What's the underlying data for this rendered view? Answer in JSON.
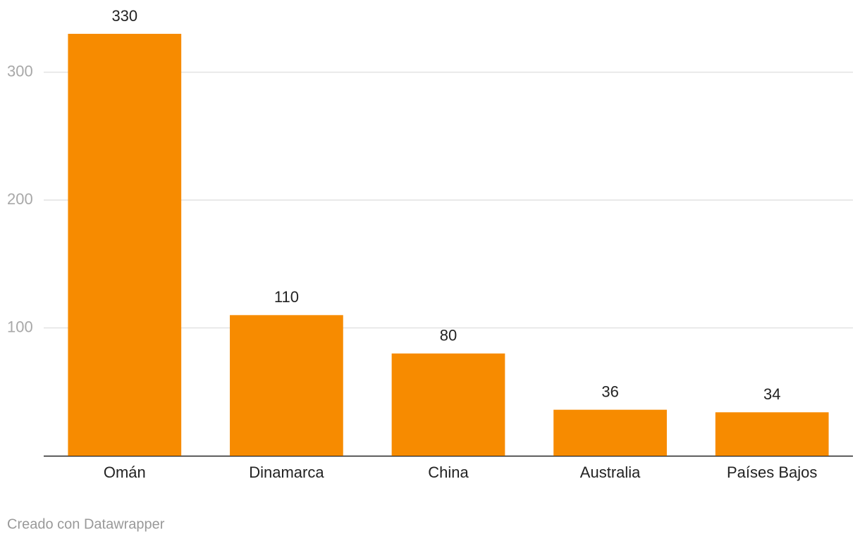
{
  "chart_data": {
    "type": "bar",
    "categories": [
      "Omán",
      "Dinamarca",
      "China",
      "Australia",
      "Países Bajos"
    ],
    "values": [
      330,
      110,
      80,
      36,
      34
    ],
    "color": "#f78b00",
    "ylim": [
      0,
      330
    ],
    "yticks": [
      100,
      200,
      300
    ],
    "grid": true,
    "footer": "Creado con Datawrapper"
  }
}
